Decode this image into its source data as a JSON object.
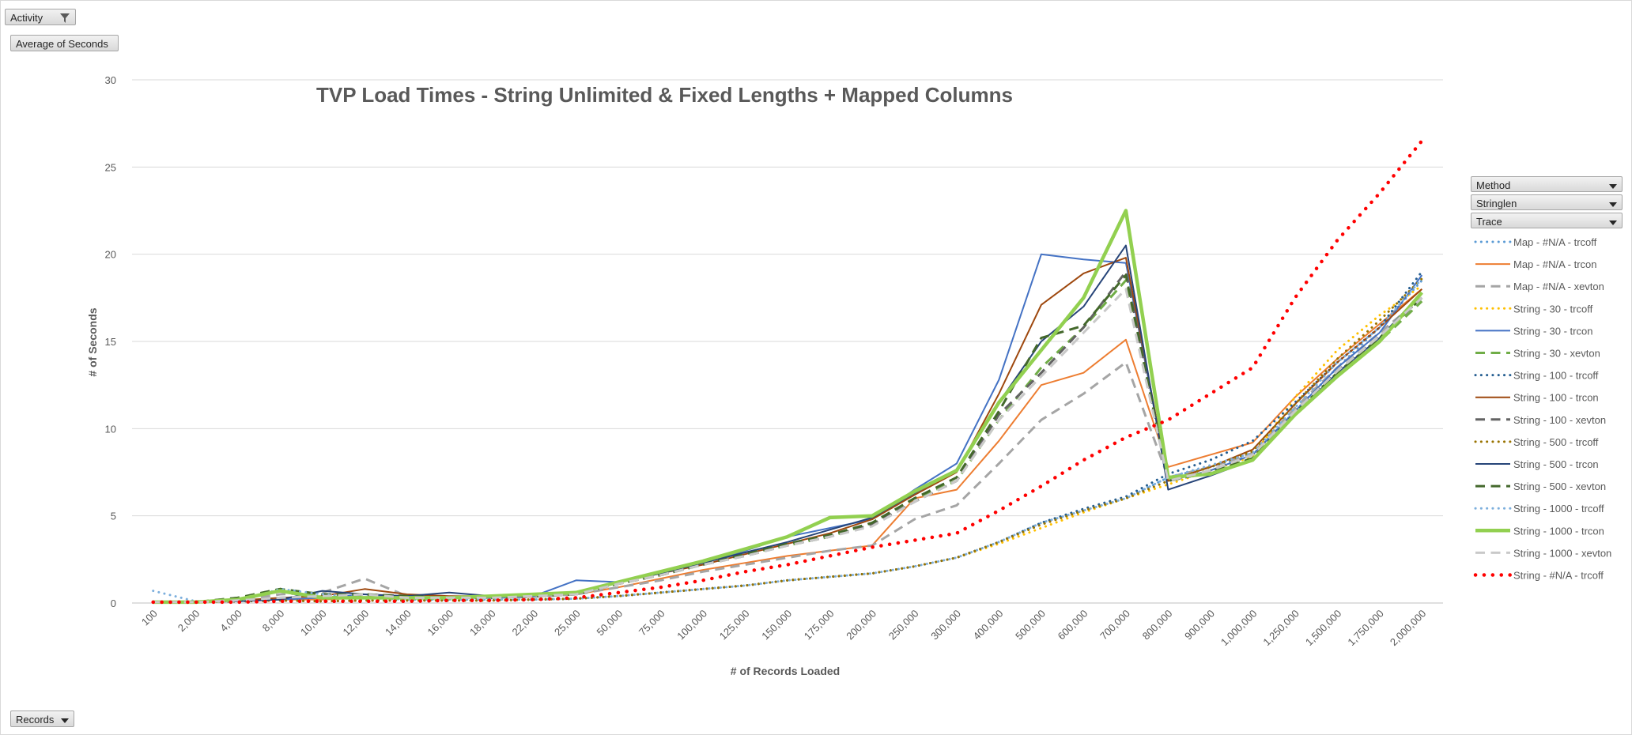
{
  "controls": {
    "activity_label": "Activity",
    "value_label": "Average of Seconds",
    "records_label": "Records",
    "legend_fields": [
      "Method",
      "Stringlen",
      "Trace"
    ]
  },
  "chart_data": {
    "type": "line",
    "title": "TVP Load Times - String Unlimited & Fixed Lengths + Mapped Columns",
    "xlabel": "# of Records Loaded",
    "ylabel": "# of Seconds",
    "ylim": [
      0,
      30
    ],
    "yticks": [
      0,
      5,
      10,
      15,
      20,
      25,
      30
    ],
    "grid": true,
    "legend_position": "right",
    "categories": [
      "100",
      "2,000",
      "4,000",
      "8,000",
      "10,000",
      "12,000",
      "14,000",
      "16,000",
      "18,000",
      "22,000",
      "25,000",
      "50,000",
      "75,000",
      "100,000",
      "125,000",
      "150,000",
      "175,000",
      "200,000",
      "250,000",
      "300,000",
      "400,000",
      "500,000",
      "600,000",
      "700,000",
      "800,000",
      "900,000",
      "1,000,000",
      "1,250,000",
      "1,500,000",
      "1,750,000",
      "2,000,000"
    ],
    "series": [
      {
        "name": "Map - #N/A - trcoff",
        "color": "#5b9bd5",
        "style": "dot",
        "width": 3,
        "values": [
          0.05,
          0.05,
          0.1,
          0.15,
          0.1,
          0.15,
          0.15,
          0.15,
          0.15,
          0.2,
          0.25,
          0.4,
          0.6,
          0.8,
          1.0,
          1.3,
          1.5,
          1.7,
          2.1,
          2.6,
          3.5,
          4.5,
          5.3,
          6.0,
          7.2,
          7.8,
          8.5,
          11.0,
          13.5,
          15.8,
          18.5
        ]
      },
      {
        "name": "Map - #N/A - trcon",
        "color": "#ed7d31",
        "style": "solid",
        "width": 2,
        "values": [
          0.05,
          0.05,
          0.1,
          0.2,
          0.2,
          0.3,
          0.3,
          0.3,
          0.3,
          0.35,
          0.5,
          0.9,
          1.4,
          1.9,
          2.3,
          2.7,
          3.0,
          3.3,
          6.0,
          6.5,
          9.3,
          12.5,
          13.2,
          15.1,
          7.8,
          8.5,
          9.2,
          11.8,
          14.0,
          16.0,
          18.0
        ]
      },
      {
        "name": "Map - #N/A - xevton",
        "color": "#a5a5a5",
        "style": "dash",
        "width": 3,
        "values": [
          0.05,
          0.05,
          0.15,
          0.5,
          0.6,
          1.4,
          0.4,
          0.3,
          0.3,
          0.35,
          0.5,
          0.9,
          1.3,
          1.8,
          2.2,
          2.6,
          3.0,
          3.3,
          4.8,
          5.6,
          8.0,
          10.5,
          12.0,
          13.8,
          7.2,
          7.8,
          8.6,
          11.2,
          13.5,
          15.5,
          17.5
        ]
      },
      {
        "name": "String - 30 - trcoff",
        "color": "#ffc000",
        "style": "dot",
        "width": 3,
        "values": [
          0.05,
          0.05,
          0.1,
          0.15,
          0.1,
          0.15,
          0.15,
          0.15,
          0.15,
          0.2,
          0.25,
          0.4,
          0.6,
          0.8,
          1.0,
          1.3,
          1.5,
          1.7,
          2.1,
          2.6,
          3.4,
          4.3,
          5.2,
          6.0,
          6.8,
          7.6,
          8.4,
          11.8,
          14.5,
          16.5,
          18.2
        ]
      },
      {
        "name": "String - 30 - trcon",
        "color": "#4472c4",
        "style": "solid",
        "width": 2,
        "values": [
          0.05,
          0.05,
          0.1,
          0.2,
          0.3,
          0.5,
          0.3,
          0.3,
          0.3,
          0.4,
          1.3,
          1.2,
          1.7,
          2.3,
          3.0,
          3.8,
          4.3,
          4.8,
          6.5,
          8.0,
          12.8,
          20.0,
          19.7,
          19.5,
          7.0,
          7.6,
          8.5,
          11.0,
          13.5,
          15.5,
          18.8
        ]
      },
      {
        "name": "String - 30 - xevton",
        "color": "#70ad47",
        "style": "dash",
        "width": 3,
        "values": [
          0.05,
          0.05,
          0.3,
          0.8,
          0.5,
          0.4,
          0.3,
          0.3,
          0.3,
          0.4,
          0.5,
          1.1,
          1.6,
          2.2,
          2.8,
          3.3,
          3.8,
          4.6,
          6.0,
          7.0,
          10.5,
          13.5,
          15.8,
          18.5,
          7.0,
          7.5,
          8.3,
          10.8,
          13.0,
          15.0,
          17.3
        ]
      },
      {
        "name": "String - 100 - trcoff",
        "color": "#255e91",
        "style": "dot",
        "width": 3,
        "values": [
          0.05,
          0.05,
          0.1,
          0.15,
          0.1,
          0.15,
          0.15,
          0.15,
          0.15,
          0.2,
          0.25,
          0.4,
          0.6,
          0.8,
          1.0,
          1.3,
          1.5,
          1.7,
          2.1,
          2.6,
          3.5,
          4.6,
          5.4,
          6.1,
          7.4,
          8.2,
          9.3,
          11.5,
          13.8,
          15.8,
          19.0
        ]
      },
      {
        "name": "String - 100 - trcon",
        "color": "#9e480e",
        "style": "solid",
        "width": 2,
        "values": [
          0.05,
          0.05,
          0.15,
          0.3,
          0.4,
          0.8,
          0.5,
          0.4,
          0.4,
          0.5,
          0.6,
          1.2,
          1.7,
          2.2,
          2.8,
          3.4,
          4.0,
          4.8,
          6.2,
          7.5,
          12.0,
          17.1,
          18.9,
          19.8,
          7.0,
          7.8,
          8.8,
          11.4,
          13.8,
          15.8,
          18.0
        ]
      },
      {
        "name": "String - 100 - xevton",
        "color": "#636363",
        "style": "dash",
        "width": 3,
        "values": [
          0.05,
          0.05,
          0.15,
          0.3,
          0.4,
          0.5,
          0.4,
          0.3,
          0.3,
          0.4,
          0.5,
          1.1,
          1.6,
          2.2,
          2.7,
          3.3,
          3.8,
          4.5,
          5.8,
          7.0,
          10.8,
          13.2,
          15.8,
          19.0,
          7.0,
          7.6,
          8.5,
          11.0,
          13.3,
          15.3,
          17.5
        ]
      },
      {
        "name": "String - 500 - trcoff",
        "color": "#997300",
        "style": "dot",
        "width": 3,
        "values": [
          0.05,
          0.05,
          0.1,
          0.15,
          0.1,
          0.15,
          0.15,
          0.15,
          0.15,
          0.2,
          0.25,
          0.4,
          0.6,
          0.8,
          1.0,
          1.3,
          1.5,
          1.7,
          2.1,
          2.6,
          3.5,
          4.5,
          5.3,
          6.0,
          7.0,
          7.8,
          8.7,
          11.4,
          14.0,
          16.2,
          18.6
        ]
      },
      {
        "name": "String - 500 - trcon",
        "color": "#264478",
        "style": "solid",
        "width": 2,
        "values": [
          0.05,
          0.05,
          0.1,
          0.2,
          0.7,
          0.5,
          0.4,
          0.6,
          0.4,
          0.5,
          0.6,
          1.2,
          1.7,
          2.3,
          2.9,
          3.5,
          4.2,
          4.9,
          6.3,
          7.6,
          11.5,
          15.0,
          17.0,
          20.5,
          6.5,
          7.3,
          8.2,
          10.8,
          13.2,
          15.2,
          17.8
        ]
      },
      {
        "name": "String - 500 - xevton",
        "color": "#43682b",
        "style": "dash",
        "width": 3,
        "values": [
          0.05,
          0.05,
          0.3,
          0.8,
          0.5,
          0.5,
          0.4,
          0.3,
          0.3,
          0.4,
          0.5,
          1.1,
          1.6,
          2.2,
          2.8,
          3.4,
          3.9,
          4.6,
          6.0,
          7.2,
          11.0,
          15.2,
          15.9,
          18.8,
          7.0,
          7.5,
          8.3,
          10.9,
          13.2,
          15.2,
          17.5
        ]
      },
      {
        "name": "String - 1000 - trcoff",
        "color": "#7cafdd",
        "style": "dot",
        "width": 3,
        "values": [
          0.7,
          0.1,
          0.1,
          0.8,
          0.5,
          0.3,
          0.2,
          0.2,
          0.2,
          0.2,
          0.25,
          0.4,
          0.6,
          0.8,
          1.0,
          1.3,
          1.5,
          1.7,
          2.1,
          2.6,
          3.5,
          4.6,
          5.3,
          6.0,
          7.2,
          7.9,
          8.6,
          11.2,
          13.8,
          15.8,
          18.6
        ]
      },
      {
        "name": "String - 1000 - trcon",
        "color": "#92d050",
        "style": "solid",
        "width": 4.5,
        "values": [
          0.05,
          0.05,
          0.2,
          0.7,
          0.3,
          0.3,
          0.3,
          0.3,
          0.4,
          0.5,
          0.6,
          1.2,
          1.8,
          2.4,
          3.1,
          3.8,
          4.9,
          5.0,
          6.4,
          7.6,
          11.5,
          14.5,
          17.5,
          22.5,
          7.2,
          7.4,
          8.2,
          10.8,
          13.0,
          15.0,
          17.8
        ]
      },
      {
        "name": "String - 1000 - xevton",
        "color": "#c9c9c9",
        "style": "dash",
        "width": 3,
        "values": [
          0.05,
          0.05,
          0.15,
          0.3,
          0.4,
          0.5,
          0.3,
          0.3,
          0.3,
          0.4,
          0.5,
          1.1,
          1.6,
          2.2,
          2.7,
          3.3,
          3.8,
          4.4,
          5.8,
          7.0,
          10.5,
          13.0,
          15.5,
          18.0,
          7.0,
          7.6,
          8.5,
          11.0,
          13.3,
          15.3,
          17.5
        ]
      },
      {
        "name": "String - #N/A - trcoff",
        "color": "#ff0000",
        "style": "dot",
        "width": 4.5,
        "values": [
          0.05,
          0.05,
          0.05,
          0.1,
          0.1,
          0.1,
          0.1,
          0.15,
          0.15,
          0.2,
          0.3,
          0.6,
          0.9,
          1.3,
          1.8,
          2.2,
          2.7,
          3.2,
          3.6,
          4.0,
          5.3,
          6.7,
          8.2,
          9.5,
          10.5,
          12.0,
          13.5,
          17.5,
          20.8,
          23.5,
          26.5
        ]
      }
    ]
  }
}
